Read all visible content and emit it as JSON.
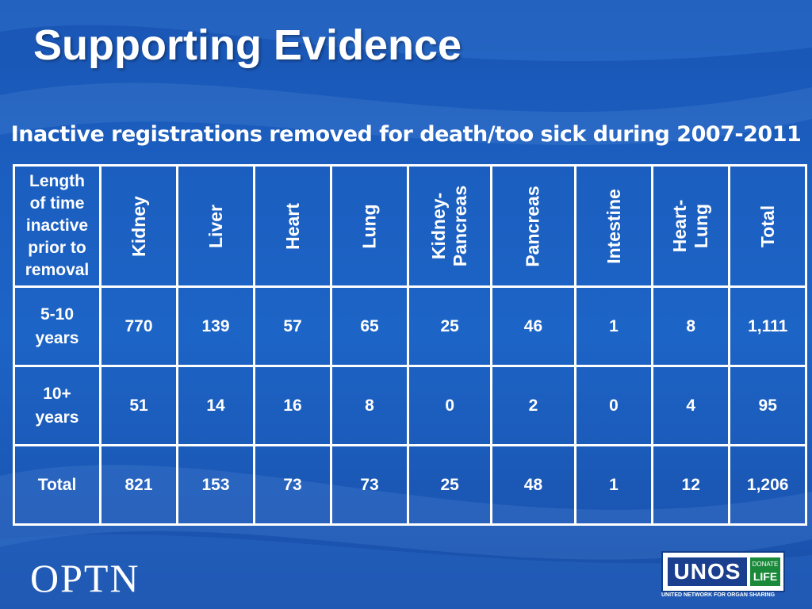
{
  "slide": {
    "title": "Supporting Evidence",
    "subtitle": "Inactive registrations removed for death/too sick during 2007-2011"
  },
  "table": {
    "corner_label": [
      "Length",
      "of time",
      "inactive",
      "prior to",
      "removal"
    ],
    "columns": [
      {
        "lines": [
          "Kidney"
        ]
      },
      {
        "lines": [
          "Liver"
        ]
      },
      {
        "lines": [
          "Heart"
        ]
      },
      {
        "lines": [
          "Lung"
        ]
      },
      {
        "lines": [
          "Kidney-",
          "Pancreas"
        ]
      },
      {
        "lines": [
          "Pancreas"
        ]
      },
      {
        "lines": [
          "Intestine"
        ]
      },
      {
        "lines": [
          "Heart-",
          "Lung"
        ]
      },
      {
        "lines": [
          "Total"
        ]
      }
    ],
    "rows": [
      {
        "label": [
          "5-10",
          "years"
        ],
        "values": [
          "770",
          "139",
          "57",
          "65",
          "25",
          "46",
          "1",
          "8",
          "1,111"
        ]
      },
      {
        "label": [
          "10+",
          "years"
        ],
        "values": [
          "51",
          "14",
          "16",
          "8",
          "0",
          "2",
          "0",
          "4",
          "95"
        ]
      },
      {
        "label": [
          "Total"
        ],
        "values": [
          "821",
          "153",
          "73",
          "73",
          "25",
          "48",
          "1",
          "12",
          "1,206"
        ]
      }
    ]
  },
  "footer": {
    "optn": "OPTN",
    "unos": "UNOS",
    "donate": "DONATE",
    "life": "LIFE",
    "unos_tagline": "UNITED NETWORK FOR ORGAN SHARING"
  }
}
